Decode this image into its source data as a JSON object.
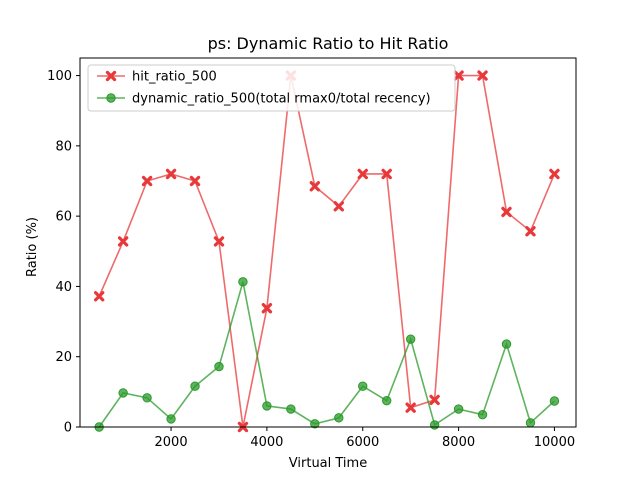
{
  "chart_data": {
    "type": "line",
    "title": "ps: Dynamic Ratio to Hit Ratio",
    "xlabel": "Virtual Time",
    "ylabel": "Ratio (%)",
    "xlim": [
      100,
      10450
    ],
    "ylim": [
      0,
      105
    ],
    "xticks": [
      2000,
      4000,
      6000,
      8000,
      10000
    ],
    "yticks": [
      0,
      20,
      40,
      60,
      80,
      100
    ],
    "grid": false,
    "legend_position": "upper-left",
    "x": [
      500,
      1000,
      1500,
      2000,
      2500,
      3000,
      3500,
      4000,
      4500,
      5000,
      5500,
      6000,
      6500,
      7000,
      7500,
      8000,
      8500,
      9000,
      9500,
      10000
    ],
    "series": [
      {
        "name": "hit_ratio_500",
        "color": "#e8383a",
        "marker": "x",
        "values": [
          37.2,
          52.8,
          70.0,
          72.0,
          70.0,
          52.8,
          0.0,
          33.8,
          100.0,
          68.5,
          62.8,
          72.0,
          72.0,
          5.5,
          7.7,
          100.0,
          100.0,
          61.2,
          55.7,
          72.0
        ]
      },
      {
        "name": "dynamic_ratio_500(total rmax0/total recency)",
        "color": "#2a9a2a",
        "marker": "o",
        "values": [
          0.0,
          9.7,
          8.3,
          2.3,
          11.6,
          17.2,
          41.3,
          6.0,
          5.1,
          0.9,
          2.6,
          11.6,
          7.5,
          25.0,
          0.6,
          5.1,
          3.5,
          23.6,
          1.2,
          7.4
        ]
      }
    ]
  }
}
